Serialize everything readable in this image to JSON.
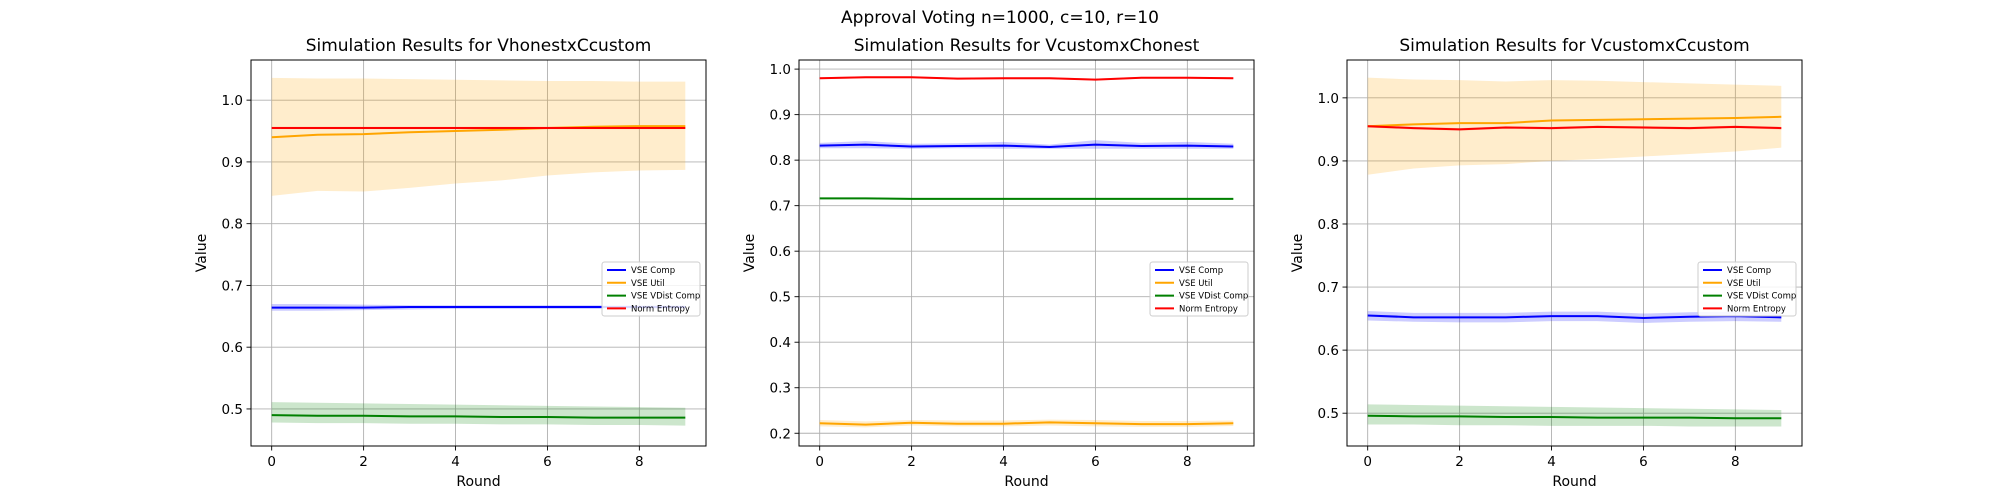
{
  "figure": {
    "suptitle": "Approval Voting n=1000, c=10, r=10"
  },
  "chart_data": [
    {
      "type": "line",
      "title": "Simulation Results for VhonestxCcustom",
      "xlabel": "Round",
      "ylabel": "Value",
      "x": [
        0,
        1,
        2,
        3,
        4,
        5,
        6,
        7,
        8,
        9
      ],
      "xlim": [
        -0.45,
        9.45
      ],
      "ylim": [
        0.44,
        1.065
      ],
      "xticks": [
        "0",
        "2",
        "4",
        "6",
        "8"
      ],
      "yticks": [
        "0.5",
        "0.6",
        "0.7",
        "0.8",
        "0.9",
        "1.0"
      ],
      "grid": true,
      "legend_position": "center-right",
      "series": [
        {
          "name": "VSE Comp",
          "color": "#0000ff",
          "values": [
            0.664,
            0.664,
            0.664,
            0.665,
            0.665,
            0.665,
            0.665,
            0.665,
            0.665,
            0.665
          ],
          "lower": [
            0.659,
            0.659,
            0.66,
            0.661,
            0.662,
            0.662,
            0.662,
            0.662,
            0.662,
            0.662
          ],
          "upper": [
            0.67,
            0.67,
            0.669,
            0.668,
            0.668,
            0.668,
            0.668,
            0.668,
            0.668,
            0.668
          ]
        },
        {
          "name": "VSE Util",
          "color": "#ffa500",
          "values": [
            0.94,
            0.944,
            0.945,
            0.948,
            0.95,
            0.952,
            0.955,
            0.957,
            0.958,
            0.958
          ],
          "lower": [
            0.845,
            0.853,
            0.852,
            0.858,
            0.865,
            0.87,
            0.878,
            0.883,
            0.886,
            0.887
          ],
          "upper": [
            1.036,
            1.035,
            1.035,
            1.034,
            1.033,
            1.032,
            1.031,
            1.031,
            1.03,
            1.03
          ]
        },
        {
          "name": "VSE VDist Comp",
          "color": "#008000",
          "values": [
            0.49,
            0.489,
            0.489,
            0.488,
            0.488,
            0.487,
            0.487,
            0.486,
            0.486,
            0.486
          ],
          "lower": [
            0.478,
            0.477,
            0.477,
            0.476,
            0.476,
            0.475,
            0.475,
            0.474,
            0.474,
            0.473
          ],
          "upper": [
            0.511,
            0.51,
            0.509,
            0.508,
            0.507,
            0.506,
            0.505,
            0.504,
            0.503,
            0.502
          ]
        },
        {
          "name": "Norm Entropy",
          "color": "#ff0000",
          "values": [
            0.955,
            0.955,
            0.955,
            0.955,
            0.955,
            0.955,
            0.955,
            0.955,
            0.955,
            0.955
          ],
          "lower": [
            0.953,
            0.953,
            0.953,
            0.953,
            0.953,
            0.953,
            0.953,
            0.953,
            0.953,
            0.953
          ],
          "upper": [
            0.957,
            0.957,
            0.957,
            0.957,
            0.957,
            0.957,
            0.957,
            0.957,
            0.957,
            0.957
          ]
        }
      ]
    },
    {
      "type": "line",
      "title": "Simulation Results for VcustomxChonest",
      "xlabel": "Round",
      "ylabel": "Value",
      "x": [
        0,
        1,
        2,
        3,
        4,
        5,
        6,
        7,
        8,
        9
      ],
      "xlim": [
        -0.45,
        9.45
      ],
      "ylim": [
        0.172,
        1.02
      ],
      "xticks": [
        "0",
        "2",
        "4",
        "6",
        "8"
      ],
      "yticks": [
        "0.2",
        "0.3",
        "0.4",
        "0.5",
        "0.6",
        "0.7",
        "0.8",
        "0.9",
        "1.0"
      ],
      "grid": true,
      "legend_position": "center-right",
      "series": [
        {
          "name": "VSE Comp",
          "color": "#0000ff",
          "values": [
            0.832,
            0.834,
            0.83,
            0.831,
            0.832,
            0.829,
            0.834,
            0.831,
            0.832,
            0.83
          ],
          "lower": [
            0.826,
            0.826,
            0.825,
            0.826,
            0.825,
            0.825,
            0.825,
            0.825,
            0.825,
            0.825
          ],
          "upper": [
            0.838,
            0.842,
            0.836,
            0.837,
            0.84,
            0.834,
            0.844,
            0.838,
            0.84,
            0.836
          ]
        },
        {
          "name": "VSE Util",
          "color": "#ffa500",
          "values": [
            0.222,
            0.219,
            0.223,
            0.221,
            0.221,
            0.224,
            0.222,
            0.22,
            0.22,
            0.222
          ],
          "lower": [
            0.215,
            0.213,
            0.217,
            0.215,
            0.215,
            0.217,
            0.215,
            0.214,
            0.214,
            0.216
          ],
          "upper": [
            0.229,
            0.226,
            0.229,
            0.228,
            0.228,
            0.23,
            0.229,
            0.227,
            0.227,
            0.228
          ]
        },
        {
          "name": "VSE VDist Comp",
          "color": "#008000",
          "values": [
            0.716,
            0.716,
            0.715,
            0.715,
            0.715,
            0.715,
            0.715,
            0.715,
            0.715,
            0.715
          ],
          "lower": [
            0.714,
            0.714,
            0.713,
            0.713,
            0.713,
            0.713,
            0.713,
            0.713,
            0.713,
            0.713
          ],
          "upper": [
            0.718,
            0.718,
            0.717,
            0.717,
            0.717,
            0.717,
            0.717,
            0.717,
            0.717,
            0.717
          ]
        },
        {
          "name": "Norm Entropy",
          "color": "#ff0000",
          "values": [
            0.98,
            0.982,
            0.982,
            0.979,
            0.98,
            0.98,
            0.977,
            0.981,
            0.981,
            0.98
          ],
          "lower": [
            0.978,
            0.98,
            0.98,
            0.977,
            0.978,
            0.978,
            0.975,
            0.979,
            0.979,
            0.978
          ],
          "upper": [
            0.982,
            0.984,
            0.984,
            0.981,
            0.982,
            0.982,
            0.979,
            0.983,
            0.983,
            0.982
          ]
        }
      ]
    },
    {
      "type": "line",
      "title": "Simulation Results for VcustomxCcustom",
      "xlabel": "Round",
      "ylabel": "Value",
      "x": [
        0,
        1,
        2,
        3,
        4,
        5,
        6,
        7,
        8,
        9
      ],
      "xlim": [
        -0.45,
        9.45
      ],
      "ylim": [
        0.448,
        1.06
      ],
      "xticks": [
        "0",
        "2",
        "4",
        "6",
        "8"
      ],
      "yticks": [
        "0.5",
        "0.6",
        "0.7",
        "0.8",
        "0.9",
        "1.0"
      ],
      "grid": true,
      "legend_position": "center-right",
      "series": [
        {
          "name": "VSE Comp",
          "color": "#0000ff",
          "values": [
            0.655,
            0.652,
            0.652,
            0.652,
            0.654,
            0.654,
            0.651,
            0.653,
            0.654,
            0.652
          ],
          "lower": [
            0.647,
            0.645,
            0.644,
            0.644,
            0.646,
            0.646,
            0.643,
            0.645,
            0.646,
            0.645
          ],
          "upper": [
            0.662,
            0.659,
            0.659,
            0.659,
            0.661,
            0.661,
            0.658,
            0.66,
            0.661,
            0.659
          ]
        },
        {
          "name": "VSE Util",
          "color": "#ffa500",
          "values": [
            0.955,
            0.958,
            0.96,
            0.96,
            0.964,
            0.965,
            0.966,
            0.967,
            0.968,
            0.97
          ],
          "lower": [
            0.878,
            0.888,
            0.893,
            0.895,
            0.9,
            0.903,
            0.907,
            0.911,
            0.915,
            0.921
          ],
          "upper": [
            1.032,
            1.029,
            1.028,
            1.026,
            1.028,
            1.027,
            1.025,
            1.023,
            1.021,
            1.019
          ]
        },
        {
          "name": "VSE VDist Comp",
          "color": "#008000",
          "values": [
            0.496,
            0.495,
            0.495,
            0.494,
            0.494,
            0.493,
            0.493,
            0.493,
            0.492,
            0.492
          ],
          "lower": [
            0.482,
            0.482,
            0.481,
            0.481,
            0.48,
            0.48,
            0.48,
            0.479,
            0.479,
            0.479
          ],
          "upper": [
            0.514,
            0.513,
            0.512,
            0.511,
            0.51,
            0.509,
            0.508,
            0.507,
            0.506,
            0.505
          ]
        },
        {
          "name": "Norm Entropy",
          "color": "#ff0000",
          "values": [
            0.955,
            0.952,
            0.95,
            0.953,
            0.952,
            0.954,
            0.953,
            0.952,
            0.954,
            0.952
          ],
          "lower": [
            0.953,
            0.95,
            0.948,
            0.951,
            0.95,
            0.952,
            0.951,
            0.95,
            0.952,
            0.95
          ],
          "upper": [
            0.957,
            0.954,
            0.952,
            0.955,
            0.954,
            0.956,
            0.955,
            0.954,
            0.956,
            0.954
          ]
        }
      ]
    }
  ]
}
